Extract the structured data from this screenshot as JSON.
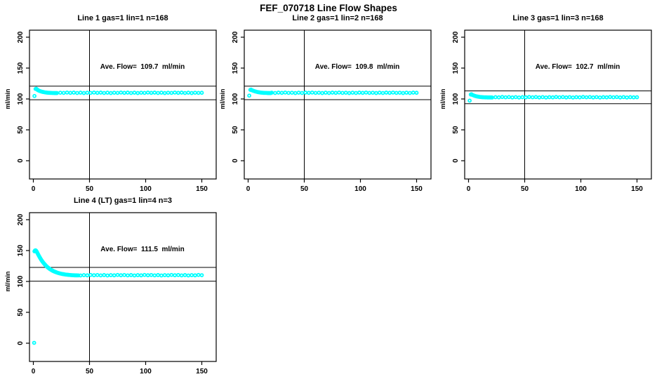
{
  "page_title": "FEF_070718  Line Flow Shapes",
  "colors": {
    "marker": "#00FFFF",
    "axis": "#000000",
    "background": "#FFFFFF"
  },
  "chart_data": [
    {
      "type": "scatter",
      "title": "Line 1 gas=1 lin=1 n=168",
      "annotation": "Ave. Flow=  109.7  ml/min",
      "ave_flow_ml_min": 109.7,
      "n": 168,
      "ylabel": "ml/min",
      "x_ticks": [
        0,
        50,
        100,
        150
      ],
      "y_ticks": [
        0,
        50,
        100,
        150,
        200
      ],
      "xlim": [
        0,
        160
      ],
      "ylim": [
        -30,
        212
      ],
      "grid": false,
      "vline_x": 50,
      "hlines": [
        120.7,
        98.7
      ],
      "points": [
        [
          1,
          104.8
        ],
        [
          2,
          116.2
        ],
        [
          2.6,
          116.6
        ],
        [
          3,
          115.8
        ],
        [
          3.6,
          115.1
        ],
        [
          4,
          114.3
        ],
        [
          5,
          113.4
        ],
        [
          6,
          112.7
        ],
        [
          7,
          112.1
        ],
        [
          8,
          111.6
        ],
        [
          9,
          111.2
        ],
        [
          10,
          110.8
        ],
        [
          11,
          110.5
        ],
        [
          12,
          110.3
        ],
        [
          13,
          110.1
        ],
        [
          14,
          110.0
        ],
        [
          15,
          109.9
        ],
        [
          16,
          109.8
        ],
        [
          17,
          109.7
        ],
        [
          18,
          109.7
        ],
        [
          19,
          109.6
        ],
        [
          20,
          109.6
        ],
        [
          21,
          109.6
        ],
        [
          24,
          110.1
        ],
        [
          27,
          109.8
        ],
        [
          30,
          110.4
        ],
        [
          33,
          109.9
        ],
        [
          36,
          110.3
        ],
        [
          39,
          109.7
        ],
        [
          42,
          110.2
        ],
        [
          45,
          109.6
        ],
        [
          48,
          110.1
        ],
        [
          51,
          109.8
        ],
        [
          54,
          110.4
        ],
        [
          57,
          109.9
        ],
        [
          60,
          110.3
        ],
        [
          63,
          109.7
        ],
        [
          66,
          110.2
        ],
        [
          69,
          109.6
        ],
        [
          72,
          110.1
        ],
        [
          75,
          109.8
        ],
        [
          78,
          110.4
        ],
        [
          81,
          109.9
        ],
        [
          84,
          110.3
        ],
        [
          87,
          109.7
        ],
        [
          90,
          110.2
        ],
        [
          93,
          109.6
        ],
        [
          96,
          110.1
        ],
        [
          99,
          109.8
        ],
        [
          102,
          110.4
        ],
        [
          105,
          109.9
        ],
        [
          108,
          110.3
        ],
        [
          111,
          109.7
        ],
        [
          114,
          110.2
        ],
        [
          117,
          109.6
        ],
        [
          120,
          110.1
        ],
        [
          123,
          109.8
        ],
        [
          126,
          110.4
        ],
        [
          129,
          109.9
        ],
        [
          132,
          110.3
        ],
        [
          135,
          109.7
        ],
        [
          138,
          110.2
        ],
        [
          141,
          109.6
        ],
        [
          144,
          110.1
        ],
        [
          147,
          109.8
        ],
        [
          150,
          110.0
        ]
      ]
    },
    {
      "type": "scatter",
      "title": "Line 2 gas=1 lin=2 n=168",
      "annotation": "Ave. Flow=  109.8  ml/min",
      "ave_flow_ml_min": 109.8,
      "n": 168,
      "ylabel": "ml/min",
      "x_ticks": [
        0,
        50,
        100,
        150
      ],
      "y_ticks": [
        0,
        50,
        100,
        150,
        200
      ],
      "xlim": [
        0,
        160
      ],
      "ylim": [
        -30,
        212
      ],
      "grid": false,
      "vline_x": 50,
      "hlines": [
        120.8,
        98.8
      ],
      "points": [
        [
          1,
          105.4
        ],
        [
          2,
          114.8
        ],
        [
          2.6,
          115.2
        ],
        [
          3,
          114.4
        ],
        [
          4,
          113.7
        ],
        [
          5,
          113.0
        ],
        [
          6,
          112.4
        ],
        [
          7,
          111.9
        ],
        [
          8,
          111.4
        ],
        [
          9,
          111.0
        ],
        [
          10,
          110.7
        ],
        [
          11,
          110.4
        ],
        [
          12,
          110.2
        ],
        [
          13,
          110.1
        ],
        [
          14,
          109.9
        ],
        [
          15,
          109.8
        ],
        [
          16,
          109.8
        ],
        [
          17,
          109.7
        ],
        [
          18,
          109.6
        ],
        [
          19,
          109.6
        ],
        [
          20,
          109.5
        ],
        [
          21,
          110.2
        ],
        [
          24,
          109.7
        ],
        [
          27,
          110.3
        ],
        [
          30,
          109.9
        ],
        [
          33,
          110.4
        ],
        [
          36,
          109.8
        ],
        [
          39,
          110.1
        ],
        [
          42,
          109.6
        ],
        [
          45,
          110.2
        ],
        [
          48,
          109.7
        ],
        [
          51,
          110.3
        ],
        [
          54,
          109.9
        ],
        [
          57,
          110.4
        ],
        [
          60,
          109.8
        ],
        [
          63,
          110.1
        ],
        [
          66,
          109.6
        ],
        [
          69,
          110.2
        ],
        [
          72,
          109.7
        ],
        [
          75,
          110.3
        ],
        [
          78,
          109.9
        ],
        [
          81,
          110.4
        ],
        [
          84,
          109.8
        ],
        [
          87,
          110.1
        ],
        [
          90,
          109.6
        ],
        [
          93,
          110.2
        ],
        [
          96,
          109.7
        ],
        [
          99,
          110.3
        ],
        [
          102,
          109.9
        ],
        [
          105,
          110.4
        ],
        [
          108,
          109.8
        ],
        [
          111,
          110.1
        ],
        [
          114,
          109.6
        ],
        [
          117,
          110.2
        ],
        [
          120,
          109.7
        ],
        [
          123,
          110.3
        ],
        [
          126,
          109.9
        ],
        [
          129,
          110.4
        ],
        [
          132,
          109.8
        ],
        [
          135,
          110.1
        ],
        [
          138,
          109.6
        ],
        [
          141,
          110.2
        ],
        [
          144,
          109.7
        ],
        [
          147,
          110.3
        ],
        [
          150,
          110.0
        ]
      ]
    },
    {
      "type": "scatter",
      "title": "Line 3 gas=1 lin=3 n=168",
      "annotation": "Ave. Flow=  102.7  ml/min",
      "ave_flow_ml_min": 102.7,
      "n": 168,
      "ylabel": "ml/min",
      "x_ticks": [
        0,
        50,
        100,
        150
      ],
      "y_ticks": [
        0,
        50,
        100,
        150,
        200
      ],
      "xlim": [
        0,
        160
      ],
      "ylim": [
        -30,
        212
      ],
      "grid": false,
      "vline_x": 50,
      "hlines": [
        113.0,
        92.4
      ],
      "points": [
        [
          1,
          97.3
        ],
        [
          2,
          107.2
        ],
        [
          2.6,
          107.6
        ],
        [
          3,
          106.9
        ],
        [
          4,
          106.1
        ],
        [
          5,
          105.4
        ],
        [
          6,
          104.8
        ],
        [
          7,
          104.3
        ],
        [
          8,
          103.9
        ],
        [
          9,
          103.6
        ],
        [
          10,
          103.3
        ],
        [
          11,
          103.1
        ],
        [
          12,
          102.9
        ],
        [
          13,
          102.8
        ],
        [
          14,
          102.7
        ],
        [
          15,
          102.6
        ],
        [
          16,
          102.6
        ],
        [
          17,
          102.5
        ],
        [
          18,
          102.5
        ],
        [
          19,
          102.5
        ],
        [
          20,
          102.5
        ],
        [
          21,
          102.4
        ],
        [
          24,
          102.9
        ],
        [
          27,
          102.6
        ],
        [
          30,
          103.2
        ],
        [
          33,
          102.7
        ],
        [
          36,
          103.1
        ],
        [
          39,
          102.5
        ],
        [
          42,
          103.0
        ],
        [
          45,
          102.4
        ],
        [
          48,
          102.9
        ],
        [
          51,
          102.6
        ],
        [
          54,
          103.2
        ],
        [
          57,
          102.7
        ],
        [
          60,
          103.1
        ],
        [
          63,
          102.5
        ],
        [
          66,
          103.0
        ],
        [
          69,
          102.4
        ],
        [
          72,
          102.9
        ],
        [
          75,
          102.6
        ],
        [
          78,
          103.2
        ],
        [
          81,
          102.7
        ],
        [
          84,
          103.1
        ],
        [
          87,
          102.5
        ],
        [
          90,
          103.0
        ],
        [
          93,
          102.4
        ],
        [
          96,
          102.9
        ],
        [
          99,
          102.6
        ],
        [
          102,
          103.2
        ],
        [
          105,
          102.7
        ],
        [
          108,
          103.1
        ],
        [
          111,
          102.5
        ],
        [
          114,
          103.0
        ],
        [
          117,
          102.4
        ],
        [
          120,
          102.9
        ],
        [
          123,
          102.6
        ],
        [
          126,
          103.2
        ],
        [
          129,
          102.7
        ],
        [
          132,
          103.1
        ],
        [
          135,
          102.5
        ],
        [
          138,
          103.0
        ],
        [
          141,
          102.4
        ],
        [
          144,
          102.9
        ],
        [
          147,
          102.6
        ],
        [
          150,
          102.8
        ]
      ]
    },
    {
      "type": "scatter",
      "title": "Line 4 (LT) gas=1 lin=4 n=3",
      "annotation": "Ave. Flow=  111.5  ml/min",
      "ave_flow_ml_min": 111.5,
      "n": 3,
      "ylabel": "ml/min",
      "x_ticks": [
        0,
        50,
        100,
        150
      ],
      "y_ticks": [
        0,
        50,
        100,
        150,
        200
      ],
      "xlim": [
        0,
        160
      ],
      "ylim": [
        -30,
        212
      ],
      "grid": false,
      "vline_x": 50,
      "hlines": [
        122.7,
        100.4
      ],
      "points": [
        [
          0.7,
          0.6
        ],
        [
          1,
          148.8
        ],
        [
          1.5,
          150.1
        ],
        [
          2,
          150.4
        ],
        [
          2.5,
          149.6
        ],
        [
          3,
          148.2
        ],
        [
          3.5,
          146.5
        ],
        [
          4,
          144.7
        ],
        [
          4.5,
          143.0
        ],
        [
          5,
          141.3
        ],
        [
          5.5,
          139.7
        ],
        [
          6,
          138.1
        ],
        [
          6.5,
          136.6
        ],
        [
          7,
          135.2
        ],
        [
          7.5,
          133.8
        ],
        [
          8,
          132.5
        ],
        [
          8.5,
          131.3
        ],
        [
          9,
          130.1
        ],
        [
          9.5,
          129.0
        ],
        [
          10,
          127.9
        ],
        [
          10.5,
          126.9
        ],
        [
          11,
          125.9
        ],
        [
          11.5,
          125.0
        ],
        [
          12,
          124.1
        ],
        [
          12.5,
          123.3
        ],
        [
          13,
          122.5
        ],
        [
          13.5,
          121.8
        ],
        [
          14,
          121.1
        ],
        [
          14.5,
          120.4
        ],
        [
          15,
          119.8
        ],
        [
          15.5,
          119.2
        ],
        [
          16,
          118.6
        ],
        [
          16.5,
          118.1
        ],
        [
          17,
          117.6
        ],
        [
          17.5,
          117.1
        ],
        [
          18,
          116.7
        ],
        [
          18.5,
          116.2
        ],
        [
          19,
          115.8
        ],
        [
          19.5,
          115.5
        ],
        [
          20,
          115.1
        ],
        [
          21,
          114.4
        ],
        [
          22,
          113.8
        ],
        [
          23,
          113.3
        ],
        [
          24,
          112.8
        ],
        [
          25,
          112.4
        ],
        [
          26,
          112.0
        ],
        [
          27,
          111.7
        ],
        [
          28,
          111.4
        ],
        [
          29,
          111.1
        ],
        [
          30,
          110.9
        ],
        [
          31,
          110.7
        ],
        [
          32,
          110.5
        ],
        [
          33,
          110.4
        ],
        [
          34,
          110.2
        ],
        [
          35,
          110.1
        ],
        [
          36,
          110.0
        ],
        [
          37,
          109.9
        ],
        [
          38,
          109.9
        ],
        [
          39,
          109.8
        ],
        [
          40,
          109.8
        ],
        [
          42,
          109.7
        ],
        [
          45,
          110.2
        ],
        [
          48,
          109.9
        ],
        [
          51,
          110.5
        ],
        [
          54,
          110.0
        ],
        [
          57,
          110.4
        ],
        [
          60,
          109.8
        ],
        [
          63,
          110.3
        ],
        [
          66,
          109.7
        ],
        [
          69,
          110.2
        ],
        [
          72,
          109.9
        ],
        [
          75,
          110.5
        ],
        [
          78,
          110.0
        ],
        [
          81,
          110.4
        ],
        [
          84,
          109.8
        ],
        [
          87,
          110.3
        ],
        [
          90,
          109.7
        ],
        [
          93,
          110.2
        ],
        [
          96,
          109.9
        ],
        [
          99,
          110.5
        ],
        [
          102,
          110.0
        ],
        [
          105,
          110.4
        ],
        [
          108,
          109.8
        ],
        [
          111,
          110.3
        ],
        [
          114,
          109.7
        ],
        [
          117,
          110.2
        ],
        [
          120,
          109.9
        ],
        [
          123,
          110.5
        ],
        [
          126,
          110.0
        ],
        [
          129,
          110.4
        ],
        [
          132,
          109.8
        ],
        [
          135,
          110.3
        ],
        [
          138,
          109.7
        ],
        [
          141,
          110.2
        ],
        [
          144,
          109.9
        ],
        [
          147,
          110.5
        ],
        [
          150,
          110.1
        ]
      ]
    }
  ]
}
